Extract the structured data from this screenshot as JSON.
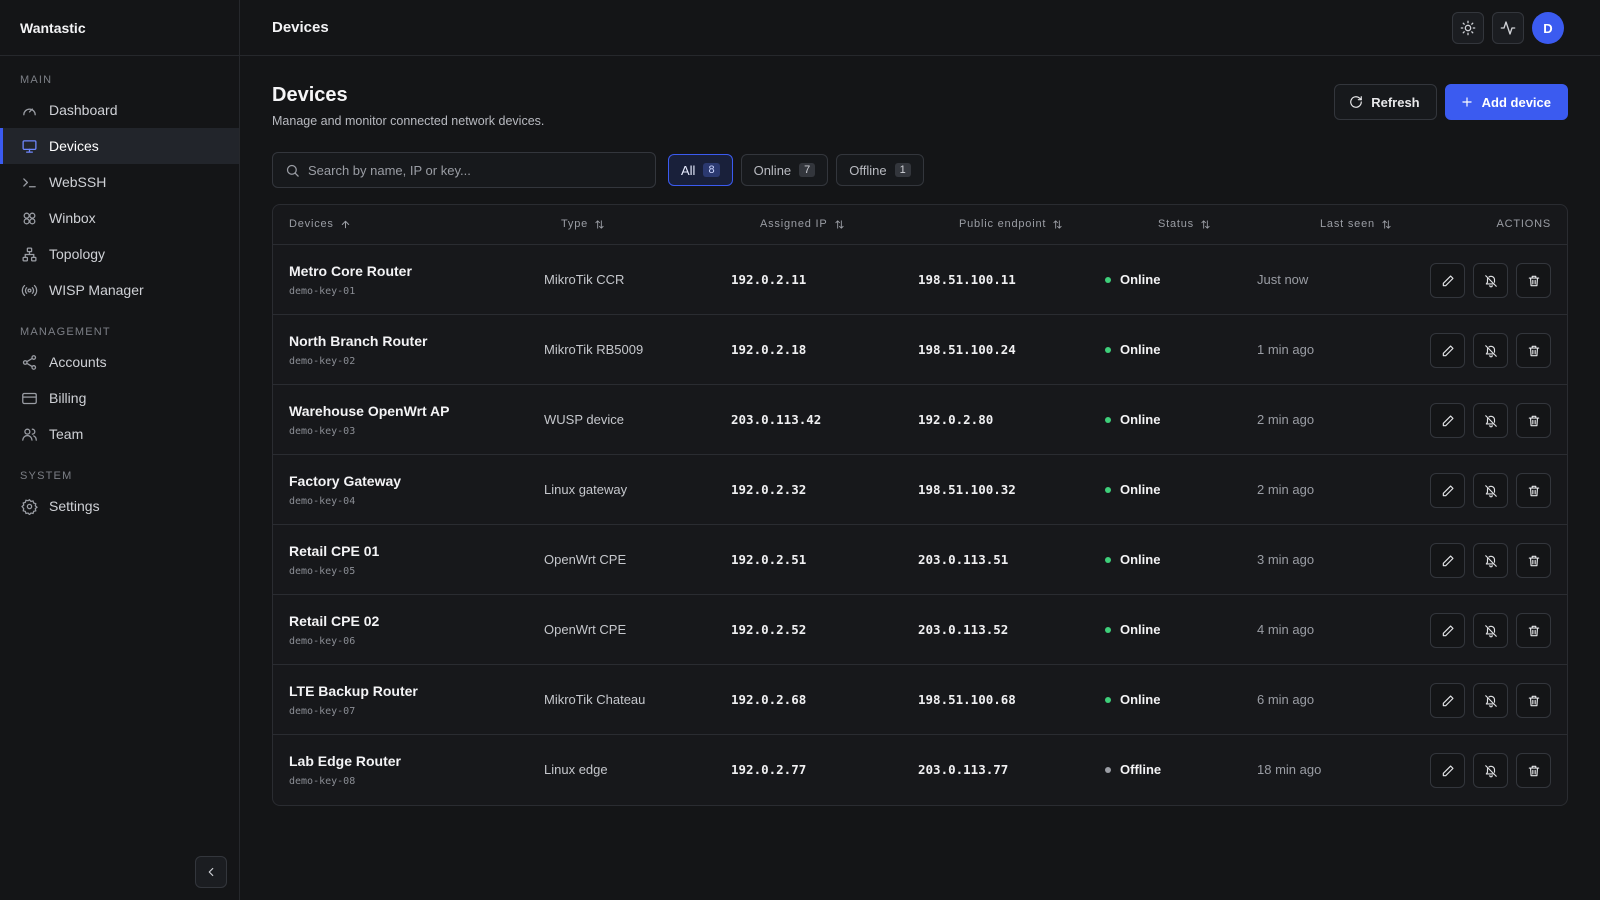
{
  "brand": "Wantastic",
  "sidebar": {
    "sections": [
      {
        "label": "MAIN",
        "items": [
          {
            "label": "Dashboard",
            "icon": "gauge-icon",
            "active": false
          },
          {
            "label": "Devices",
            "icon": "monitor-icon",
            "active": true
          },
          {
            "label": "WebSSH",
            "icon": "terminal-icon",
            "active": false
          },
          {
            "label": "Winbox",
            "icon": "winbox-icon",
            "active": false
          },
          {
            "label": "Topology",
            "icon": "topology-icon",
            "active": false
          },
          {
            "label": "WISP Manager",
            "icon": "radio-icon",
            "active": false
          }
        ]
      },
      {
        "label": "MANAGEMENT",
        "items": [
          {
            "label": "Accounts",
            "icon": "share-icon",
            "active": false
          },
          {
            "label": "Billing",
            "icon": "credit-card-icon",
            "active": false
          },
          {
            "label": "Team",
            "icon": "users-icon",
            "active": false
          }
        ]
      },
      {
        "label": "SYSTEM",
        "items": [
          {
            "label": "Settings",
            "icon": "gear-icon",
            "active": false
          }
        ]
      }
    ]
  },
  "topbar": {
    "title": "Devices",
    "avatar_initial": "D"
  },
  "page": {
    "title": "Devices",
    "subtitle": "Manage and monitor connected network devices.",
    "refresh_label": "Refresh",
    "add_label": "Add device"
  },
  "search": {
    "placeholder": "Search by name, IP or key...",
    "value": ""
  },
  "filters": [
    {
      "label": "All",
      "count": "8",
      "active": true
    },
    {
      "label": "Online",
      "count": "7",
      "active": false
    },
    {
      "label": "Offline",
      "count": "1",
      "active": false
    }
  ],
  "table": {
    "headers": {
      "device": "Devices",
      "type": "Type",
      "assigned_ip": "Assigned IP",
      "public_endpoint": "Public endpoint",
      "status": "Status",
      "last_seen": "Last seen",
      "actions": "ACTIONS"
    },
    "rows": [
      {
        "name": "Metro Core Router",
        "key": "demo-key-01",
        "type": "MikroTik CCR",
        "ip": "192.0.2.11",
        "endpoint": "198.51.100.11",
        "status": "Online",
        "last": "Just now"
      },
      {
        "name": "North Branch Router",
        "key": "demo-key-02",
        "type": "MikroTik RB5009",
        "ip": "192.0.2.18",
        "endpoint": "198.51.100.24",
        "status": "Online",
        "last": "1 min ago"
      },
      {
        "name": "Warehouse OpenWrt AP",
        "key": "demo-key-03",
        "type": "WUSP device",
        "ip": "203.0.113.42",
        "endpoint": "192.0.2.80",
        "status": "Online",
        "last": "2 min ago"
      },
      {
        "name": "Factory Gateway",
        "key": "demo-key-04",
        "type": "Linux gateway",
        "ip": "192.0.2.32",
        "endpoint": "198.51.100.32",
        "status": "Online",
        "last": "2 min ago"
      },
      {
        "name": "Retail CPE 01",
        "key": "demo-key-05",
        "type": "OpenWrt CPE",
        "ip": "192.0.2.51",
        "endpoint": "203.0.113.51",
        "status": "Online",
        "last": "3 min ago"
      },
      {
        "name": "Retail CPE 02",
        "key": "demo-key-06",
        "type": "OpenWrt CPE",
        "ip": "192.0.2.52",
        "endpoint": "203.0.113.52",
        "status": "Online",
        "last": "4 min ago"
      },
      {
        "name": "LTE Backup Router",
        "key": "demo-key-07",
        "type": "MikroTik Chateau",
        "ip": "192.0.2.68",
        "endpoint": "198.51.100.68",
        "status": "Online",
        "last": "6 min ago"
      },
      {
        "name": "Lab Edge Router",
        "key": "demo-key-08",
        "type": "Linux edge",
        "ip": "192.0.2.77",
        "endpoint": "203.0.113.77",
        "status": "Offline",
        "last": "18 min ago"
      }
    ]
  },
  "colors": {
    "accent": "#3b5bf0",
    "online": "#3ecf7a",
    "offline": "#9a9da4"
  }
}
